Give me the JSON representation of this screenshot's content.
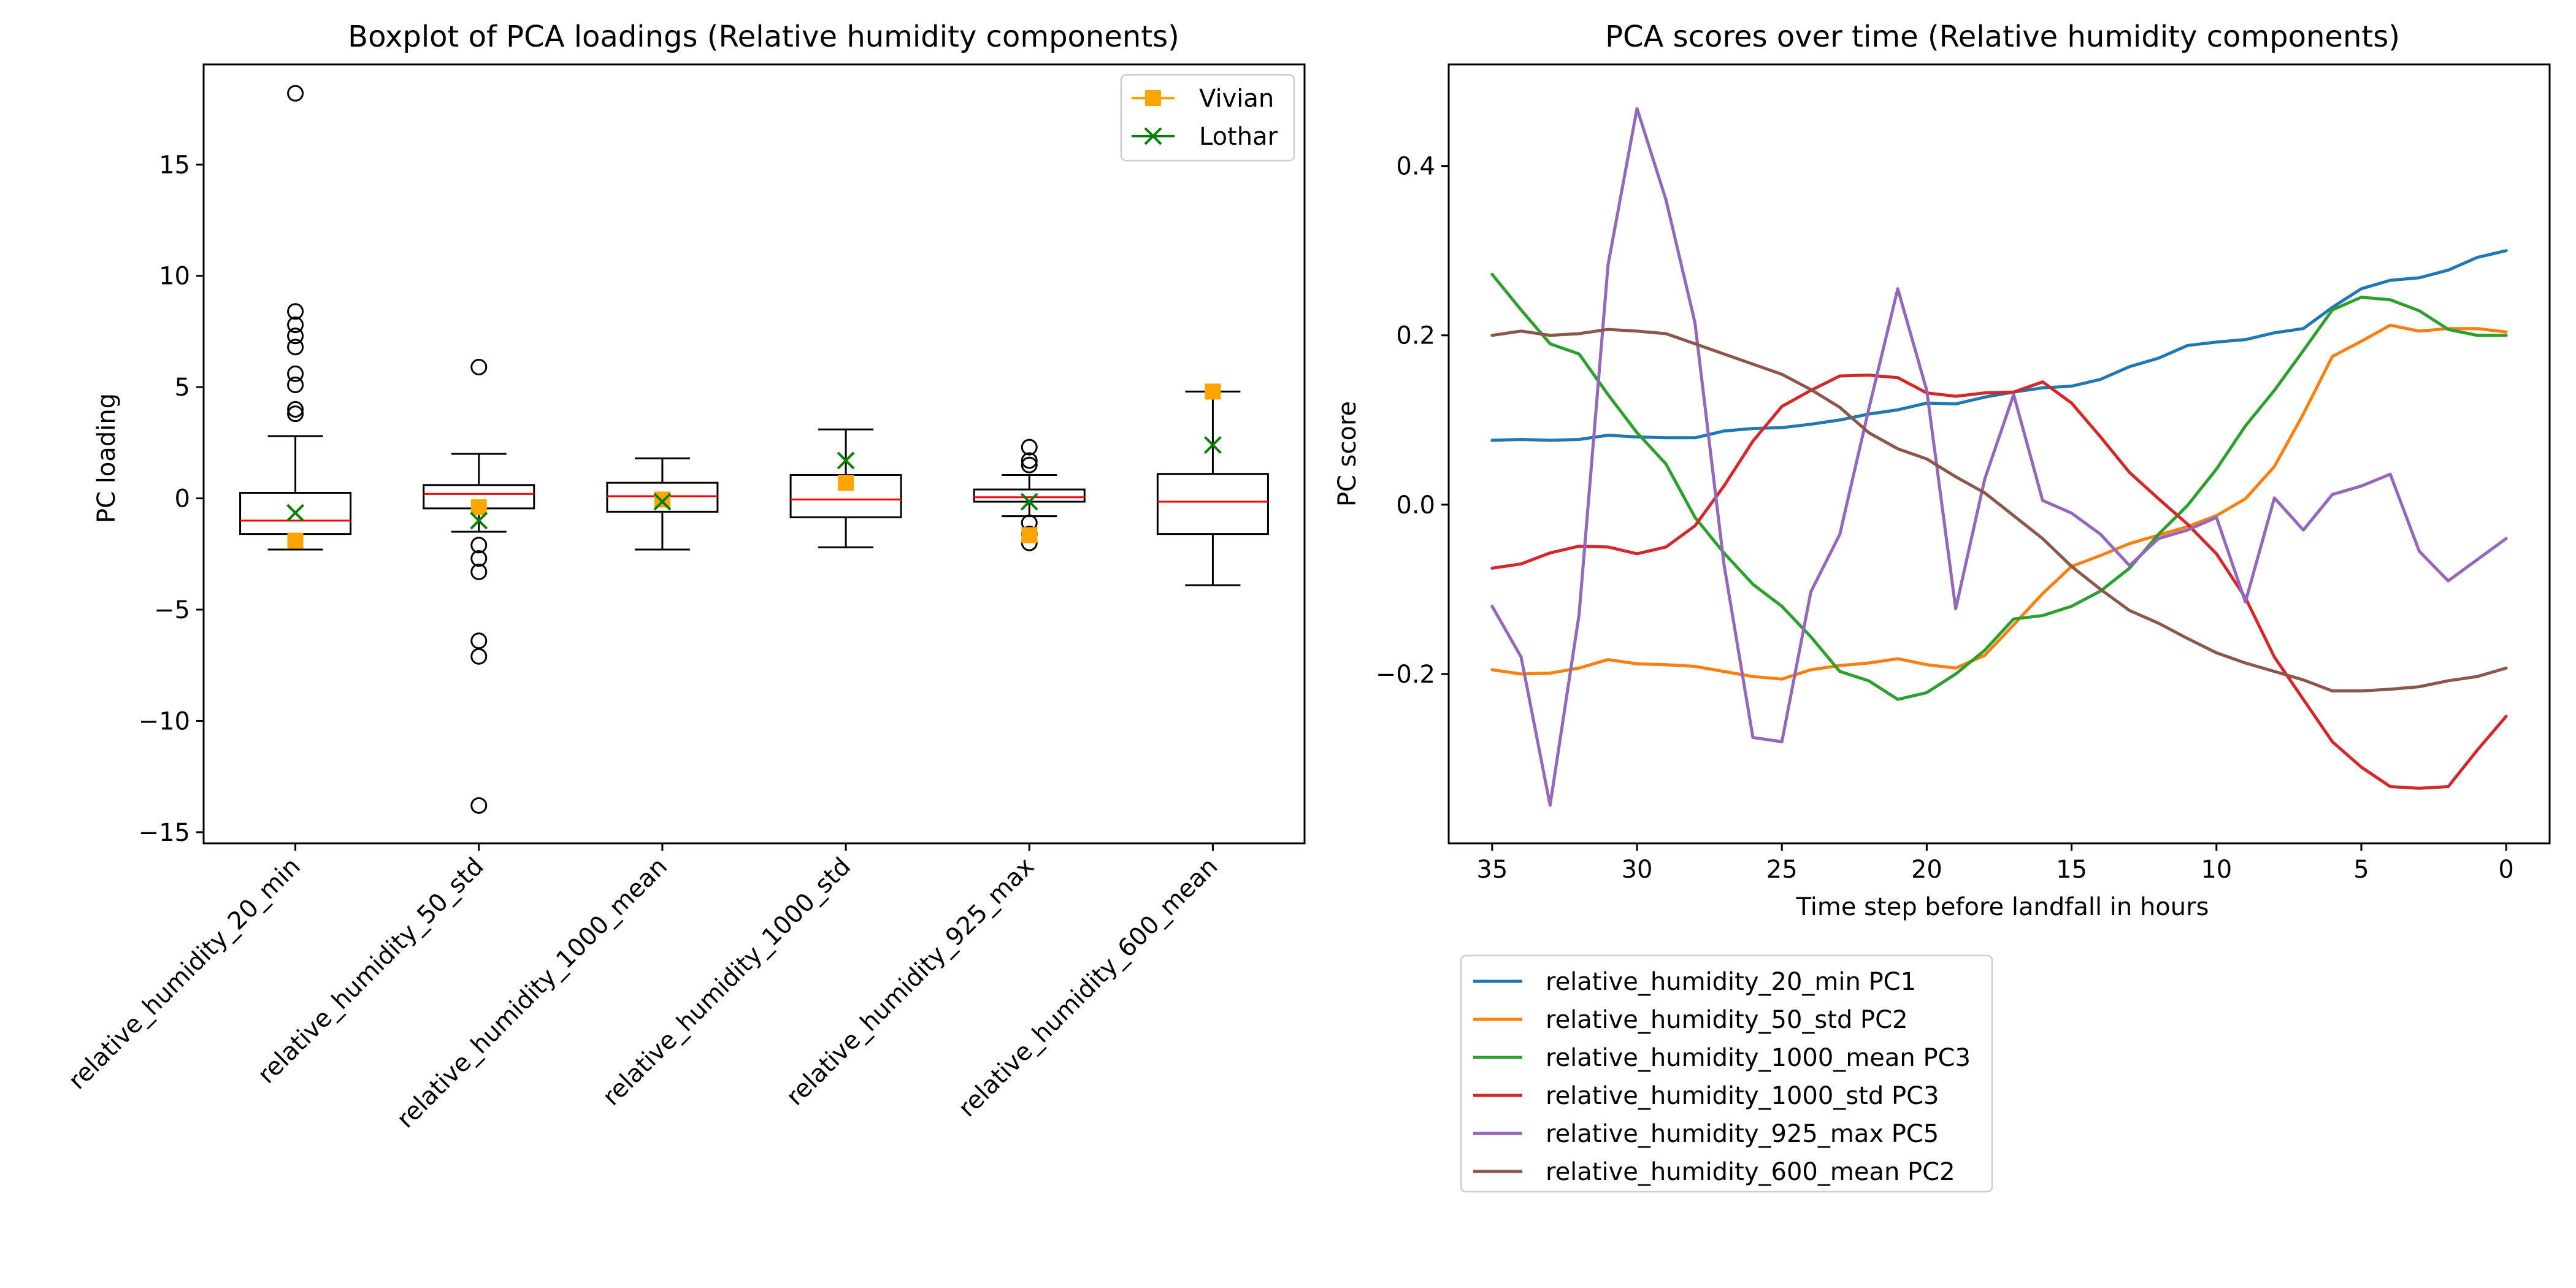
{
  "chart_data": [
    {
      "type": "box",
      "title": "Boxplot of PCA loadings (Relative humidity components)",
      "ylabel": "PC loading",
      "ylim": [
        -15.5,
        19.5
      ],
      "yticks": [
        -15,
        -10,
        -5,
        0,
        5,
        10,
        15
      ],
      "categories": [
        "relative_humidity_20_min",
        "relative_humidity_50_std",
        "relative_humidity_1000_mean",
        "relative_humidity_1000_std",
        "relative_humidity_925_max",
        "relative_humidity_600_mean"
      ],
      "boxes": [
        {
          "whisker_low": -2.3,
          "q1": -1.6,
          "median": -1.0,
          "q3": 0.25,
          "whisker_high": 2.8,
          "outliers": [
            18.2,
            8.4,
            7.8,
            7.3,
            6.8,
            5.6,
            5.1,
            4.0,
            3.8
          ]
        },
        {
          "whisker_low": -1.5,
          "q1": -0.45,
          "median": 0.2,
          "q3": 0.6,
          "whisker_high": 2.0,
          "outliers": [
            5.9,
            -2.1,
            -2.7,
            -3.3,
            -6.4,
            -7.1,
            -13.8
          ]
        },
        {
          "whisker_low": -2.3,
          "q1": -0.6,
          "median": 0.1,
          "q3": 0.7,
          "whisker_high": 1.8,
          "outliers": []
        },
        {
          "whisker_low": -2.2,
          "q1": -0.85,
          "median": -0.05,
          "q3": 1.05,
          "whisker_high": 3.1,
          "outliers": []
        },
        {
          "whisker_low": -0.8,
          "q1": -0.15,
          "median": 0.05,
          "q3": 0.4,
          "whisker_high": 1.05,
          "outliers": [
            2.3,
            1.7,
            1.5,
            -1.1,
            -1.6,
            -2.0
          ]
        },
        {
          "whisker_low": -3.9,
          "q1": -1.6,
          "median": -0.15,
          "q3": 1.1,
          "whisker_high": 4.8,
          "outliers": []
        }
      ],
      "overlays": [
        {
          "name": "Vivian",
          "color": "#ffa500",
          "marker": "square",
          "values": [
            -1.9,
            -0.4,
            -0.05,
            0.7,
            -1.65,
            4.8
          ]
        },
        {
          "name": "Lothar",
          "color": "#008000",
          "marker": "x",
          "values": [
            -0.65,
            -1.0,
            -0.15,
            1.7,
            -0.15,
            2.4
          ]
        }
      ],
      "legend": "top-right"
    },
    {
      "type": "line",
      "title": "PCA scores over time (Relative humidity components)",
      "xlabel": "Time step before landfall in hours",
      "ylabel": "PC score",
      "xlim": [
        36.5,
        -1.5
      ],
      "ylim": [
        -0.4,
        0.52
      ],
      "xticks": [
        35,
        30,
        25,
        20,
        15,
        10,
        5,
        0
      ],
      "yticks": [
        -0.2,
        0.0,
        0.2,
        0.4
      ],
      "ytick_labels": [
        "−0.2",
        "0.0",
        "0.2",
        "0.4"
      ],
      "x": [
        35,
        34,
        33,
        32,
        31,
        30,
        29,
        28,
        27,
        26,
        25,
        24,
        23,
        22,
        21,
        20,
        19,
        18,
        17,
        16,
        15,
        14,
        13,
        12,
        11,
        10,
        9,
        8,
        7,
        6,
        5,
        4,
        3,
        2,
        1,
        0
      ],
      "series": [
        {
          "name": "relative_humidity_20_min PC1",
          "color": "#1f77b4",
          "values": [
            0.076,
            0.077,
            0.076,
            0.077,
            0.082,
            0.08,
            0.079,
            0.079,
            0.087,
            0.09,
            0.091,
            0.095,
            0.1,
            0.107,
            0.112,
            0.12,
            0.119,
            0.127,
            0.133,
            0.138,
            0.14,
            0.148,
            0.163,
            0.173,
            0.188,
            0.192,
            0.195,
            0.203,
            0.208,
            0.233,
            0.255,
            0.265,
            0.268,
            0.277,
            0.292,
            0.3
          ]
        },
        {
          "name": "relative_humidity_50_std PC2",
          "color": "#ff7f0e",
          "values": [
            -0.195,
            -0.2,
            -0.199,
            -0.193,
            -0.183,
            -0.188,
            -0.189,
            -0.191,
            -0.197,
            -0.203,
            -0.206,
            -0.195,
            -0.19,
            -0.187,
            -0.182,
            -0.189,
            -0.193,
            -0.178,
            -0.142,
            -0.105,
            -0.073,
            -0.06,
            -0.046,
            -0.036,
            -0.026,
            -0.013,
            0.007,
            0.045,
            0.107,
            0.175,
            0.193,
            0.212,
            0.205,
            0.208,
            0.208,
            0.204
          ]
        },
        {
          "name": "relative_humidity_1000_mean PC3",
          "color": "#2ca02c",
          "values": [
            0.272,
            0.23,
            0.19,
            0.178,
            0.13,
            0.085,
            0.048,
            -0.015,
            -0.057,
            -0.094,
            -0.12,
            -0.156,
            -0.197,
            -0.208,
            -0.23,
            -0.222,
            -0.2,
            -0.172,
            -0.135,
            -0.131,
            -0.12,
            -0.102,
            -0.075,
            -0.035,
            -0.001,
            0.042,
            0.093,
            0.135,
            0.182,
            0.23,
            0.245,
            0.242,
            0.229,
            0.207,
            0.2,
            0.2
          ]
        },
        {
          "name": "relative_humidity_1000_std PC3",
          "color": "#d62728",
          "values": [
            -0.075,
            -0.07,
            -0.057,
            -0.049,
            -0.05,
            -0.058,
            -0.05,
            -0.025,
            0.022,
            0.075,
            0.116,
            0.135,
            0.152,
            0.153,
            0.15,
            0.132,
            0.128,
            0.132,
            0.133,
            0.145,
            0.12,
            0.08,
            0.038,
            0.007,
            -0.023,
            -0.058,
            -0.11,
            -0.18,
            -0.23,
            -0.28,
            -0.31,
            -0.333,
            -0.335,
            -0.333,
            -0.29,
            -0.25
          ]
        },
        {
          "name": "relative_humidity_925_max PC5",
          "color": "#9467bd",
          "values": [
            -0.12,
            -0.18,
            -0.355,
            -0.13,
            0.283,
            0.468,
            0.36,
            0.215,
            -0.07,
            -0.275,
            -0.28,
            -0.103,
            -0.035,
            0.113,
            0.255,
            0.135,
            -0.123,
            0.03,
            0.13,
            0.005,
            -0.01,
            -0.035,
            -0.072,
            -0.04,
            -0.03,
            -0.015,
            -0.115,
            0.008,
            -0.03,
            0.012,
            0.022,
            0.036,
            -0.055,
            -0.09,
            -0.065,
            -0.04
          ]
        },
        {
          "name": "relative_humidity_600_mean PC2",
          "color": "#8c564b",
          "values": [
            0.2,
            0.205,
            0.2,
            0.202,
            0.207,
            0.205,
            0.202,
            0.19,
            0.178,
            0.166,
            0.154,
            0.136,
            0.115,
            0.085,
            0.066,
            0.054,
            0.033,
            0.014,
            -0.013,
            -0.04,
            -0.073,
            -0.1,
            -0.125,
            -0.14,
            -0.158,
            -0.175,
            -0.187,
            -0.197,
            -0.207,
            -0.22,
            -0.22,
            -0.218,
            -0.215,
            -0.208,
            -0.203,
            -0.193
          ]
        }
      ],
      "legend": "below-left"
    }
  ]
}
